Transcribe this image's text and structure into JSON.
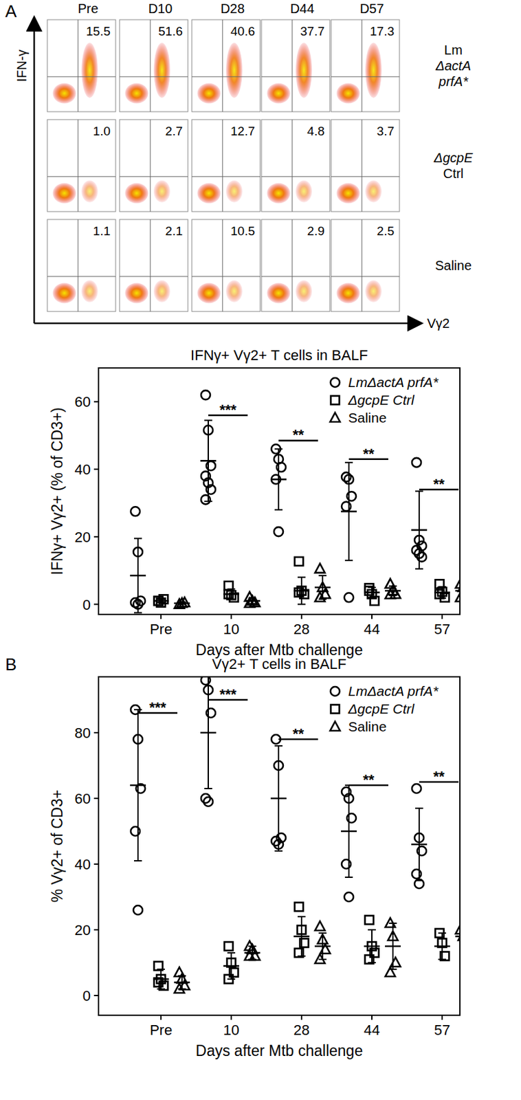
{
  "flow": {
    "panel": "A",
    "y_label": "IFN-γ",
    "x_label": "Vγ2",
    "columns": [
      "Pre",
      "D10",
      "D28",
      "D44",
      "D57"
    ],
    "rows": [
      {
        "label": [
          "Lm",
          "ΔactA",
          "prfA*"
        ],
        "values": [
          "15.5",
          "51.6",
          "40.6",
          "37.7",
          "17.3"
        ]
      },
      {
        "label": [
          "ΔgcpE",
          "Ctrl"
        ],
        "values": [
          "1.0",
          "2.7",
          "12.7",
          "4.8",
          "3.7"
        ]
      },
      {
        "label": [
          "Saline"
        ],
        "values": [
          "1.1",
          "2.1",
          "10.5",
          "2.9",
          "2.5"
        ]
      }
    ]
  },
  "chart_data": [
    {
      "type": "scatter",
      "title": "IFNγ+ Vγ2+ T cells in BALF",
      "x_label": "Days after Mtb challenge",
      "y_label": "IFNγ+ Vγ2+ (% of CD3+)",
      "categories": [
        "Pre",
        "10",
        "28",
        "44",
        "57"
      ],
      "ylim": [
        -3,
        70
      ],
      "yticks": [
        0,
        20,
        40,
        60
      ],
      "legend": "upper right",
      "series": [
        {
          "name": "LmΔactA prfA*",
          "color": "#000000",
          "marker": "circle",
          "values": [
            [
              27.5,
              15.5,
              1,
              0.5,
              0
            ],
            [
              62,
              51.6,
              41,
              38,
              36,
              34,
              31
            ],
            [
              46,
              43,
              40.6,
              37,
              21.5
            ],
            [
              37.7,
              37,
              32,
              29,
              2
            ],
            [
              42,
              19,
              17.3,
              16,
              15,
              14
            ]
          ],
          "mean": [
            8.5,
            42.5,
            37,
            27.5,
            22
          ],
          "sd": [
            11,
            12,
            9,
            14.5,
            11.5
          ]
        },
        {
          "name": "ΔgcpE Ctrl",
          "color": "#000000",
          "marker": "square",
          "values": [
            [
              1,
              0.5,
              1.5,
              1
            ],
            [
              5.5,
              2.7,
              2,
              3
            ],
            [
              12.7,
              4,
              3,
              3.5
            ],
            [
              4.8,
              3,
              1,
              4
            ],
            [
              6,
              3.7,
              2,
              3
            ]
          ],
          "mean": [
            1,
            3,
            4,
            3.5,
            3.5
          ],
          "sd": [
            0.5,
            1.5,
            4,
            1.5,
            1.7
          ]
        },
        {
          "name": "Saline",
          "color": "#000000",
          "marker": "triangle",
          "values": [
            [
              0,
              0.3,
              0.5
            ],
            [
              2.1,
              1,
              0.5,
              0.3
            ],
            [
              10.5,
              5,
              3,
              2
            ],
            [
              6,
              4,
              3,
              2.9
            ],
            [
              6,
              5,
              2.5,
              2
            ]
          ],
          "mean": [
            0.3,
            1,
            5,
            4,
            4
          ],
          "sd": [
            0.3,
            0.8,
            3.5,
            1.4,
            1.9
          ]
        }
      ],
      "annotations": [
        {
          "text": "***",
          "category": 1,
          "value": 56
        },
        {
          "text": "**",
          "category": 2,
          "value": 48.5
        },
        {
          "text": "**",
          "category": 3,
          "value": 43
        },
        {
          "text": "**",
          "category": 4,
          "value": 34
        }
      ]
    },
    {
      "type": "scatter",
      "title": "Vγ2+ T cells in BALF",
      "x_label": "Days after Mtb challenge",
      "y_label": "% Vγ2+ of CD3+",
      "categories": [
        "Pre",
        "10",
        "28",
        "44",
        "57"
      ],
      "ylim": [
        -6,
        97
      ],
      "yticks": [
        0,
        20,
        40,
        60,
        80
      ],
      "legend": "upper right",
      "series": [
        {
          "name": "LmΔactA prfA*",
          "color": "#000000",
          "marker": "circle",
          "values": [
            [
              87,
              78,
              63,
              50,
              26
            ],
            [
              96,
              93,
              86,
              60,
              59
            ],
            [
              78,
              70,
              48,
              47,
              46
            ],
            [
              62,
              60,
              54,
              40,
              30
            ],
            [
              63,
              48,
              44,
              37,
              34
            ]
          ],
          "mean": [
            64,
            80,
            60,
            50,
            46
          ],
          "sd": [
            23,
            17,
            16,
            14,
            11
          ]
        },
        {
          "name": "ΔgcpE Ctrl",
          "color": "#000000",
          "marker": "square",
          "values": [
            [
              9,
              5,
              3,
              4
            ],
            [
              15,
              10,
              7,
              5
            ],
            [
              27,
              20,
              16,
              13
            ],
            [
              23,
              15,
              13,
              11
            ],
            [
              19,
              16,
              12
            ]
          ],
          "mean": [
            5,
            9,
            18,
            15,
            15
          ],
          "sd": [
            3,
            4,
            6,
            5,
            4
          ]
        },
        {
          "name": "Saline",
          "color": "#000000",
          "marker": "triangle",
          "values": [
            [
              7,
              5,
              3,
              2
            ],
            [
              15,
              14,
              12,
              12
            ],
            [
              21,
              17,
              14,
              11
            ],
            [
              22,
              18,
              10,
              7
            ],
            [
              20,
              18,
              16
            ]
          ],
          "mean": [
            4,
            13,
            15,
            15,
            18
          ],
          "sd": [
            2,
            2,
            4,
            7,
            2
          ]
        }
      ],
      "annotations": [
        {
          "text": "***",
          "category": 0,
          "value": 86
        },
        {
          "text": "***",
          "category": 1,
          "value": 90
        },
        {
          "text": "**",
          "category": 2,
          "value": 78
        },
        {
          "text": "**",
          "category": 3,
          "value": 64
        },
        {
          "text": "**",
          "category": 4,
          "value": 65
        }
      ]
    }
  ]
}
